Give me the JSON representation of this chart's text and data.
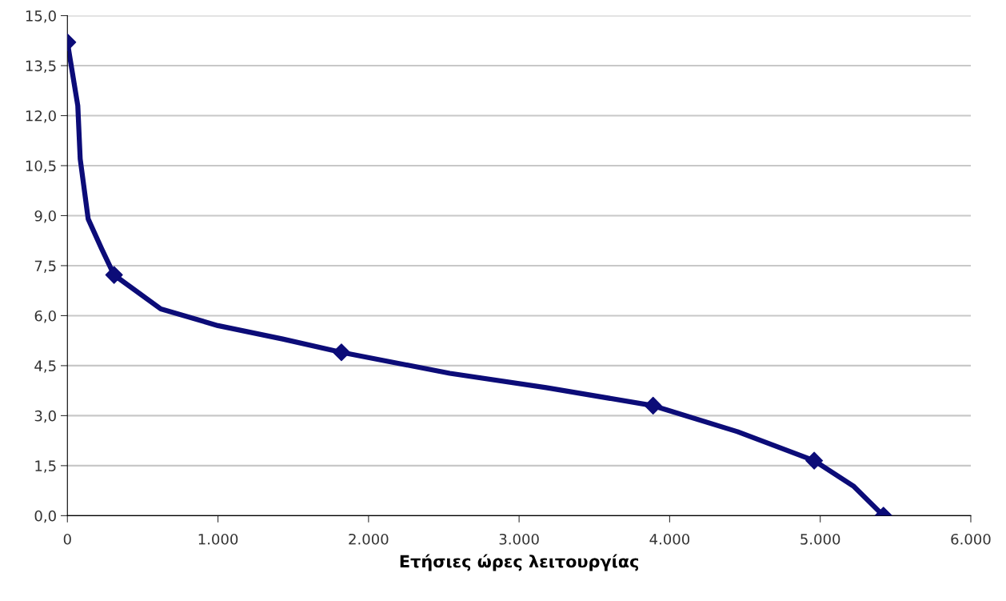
{
  "chart_data": {
    "type": "line",
    "xlabel": "Ετήσιες ώρες λειτουργίας",
    "series": [
      {
        "marker": "none",
        "color": "#0c0c78",
        "x": [
          0,
          69,
          85,
          138,
          228,
          310,
          620,
          1000,
          1430,
          1820,
          2540,
          3180,
          3890,
          4450,
          4960,
          5220,
          5420
        ],
        "values": [
          14.2,
          12.3,
          10.7,
          8.9,
          8.0,
          7.22,
          6.2,
          5.7,
          5.3,
          4.9,
          4.27,
          3.84,
          3.3,
          2.52,
          1.65,
          0.89,
          0
        ]
      },
      {
        "type": "scatter",
        "marker": "diamond",
        "color": "#0c0c78",
        "x": [
          0,
          310,
          1820,
          3890,
          4960,
          5420
        ],
        "values": [
          14.2,
          7.22,
          4.9,
          3.3,
          1.65,
          0
        ]
      }
    ],
    "line_style": "solid",
    "grid": "y",
    "xlim": [
      0,
      6000
    ],
    "xticks": [
      0,
      {
        "value": 1000,
        "label": "1.000"
      },
      {
        "value": 2000,
        "label": "2.000"
      },
      {
        "value": 3000,
        "label": "3.000"
      },
      {
        "value": 4000,
        "label": "4.000"
      },
      {
        "value": 5000,
        "label": "5.000"
      },
      {
        "value": 6000,
        "label": "6.000"
      }
    ],
    "ylim": [
      0,
      15
    ],
    "yticks": [
      {
        "value": 0,
        "label": "0,0"
      },
      {
        "value": 1.5,
        "label": "1,5"
      },
      {
        "value": 3,
        "label": "3,0"
      },
      {
        "value": 4.5,
        "label": "4,5"
      },
      {
        "value": 6,
        "label": "6,0"
      },
      {
        "value": 7.5,
        "label": "7,5"
      },
      {
        "value": 9,
        "label": "9,0"
      },
      {
        "value": 10.5,
        "label": "10,5"
      },
      {
        "value": 12,
        "label": "12,0"
      },
      {
        "value": 13.5,
        "label": "13,5"
      },
      {
        "value": 15,
        "label": "15,0"
      }
    ]
  }
}
